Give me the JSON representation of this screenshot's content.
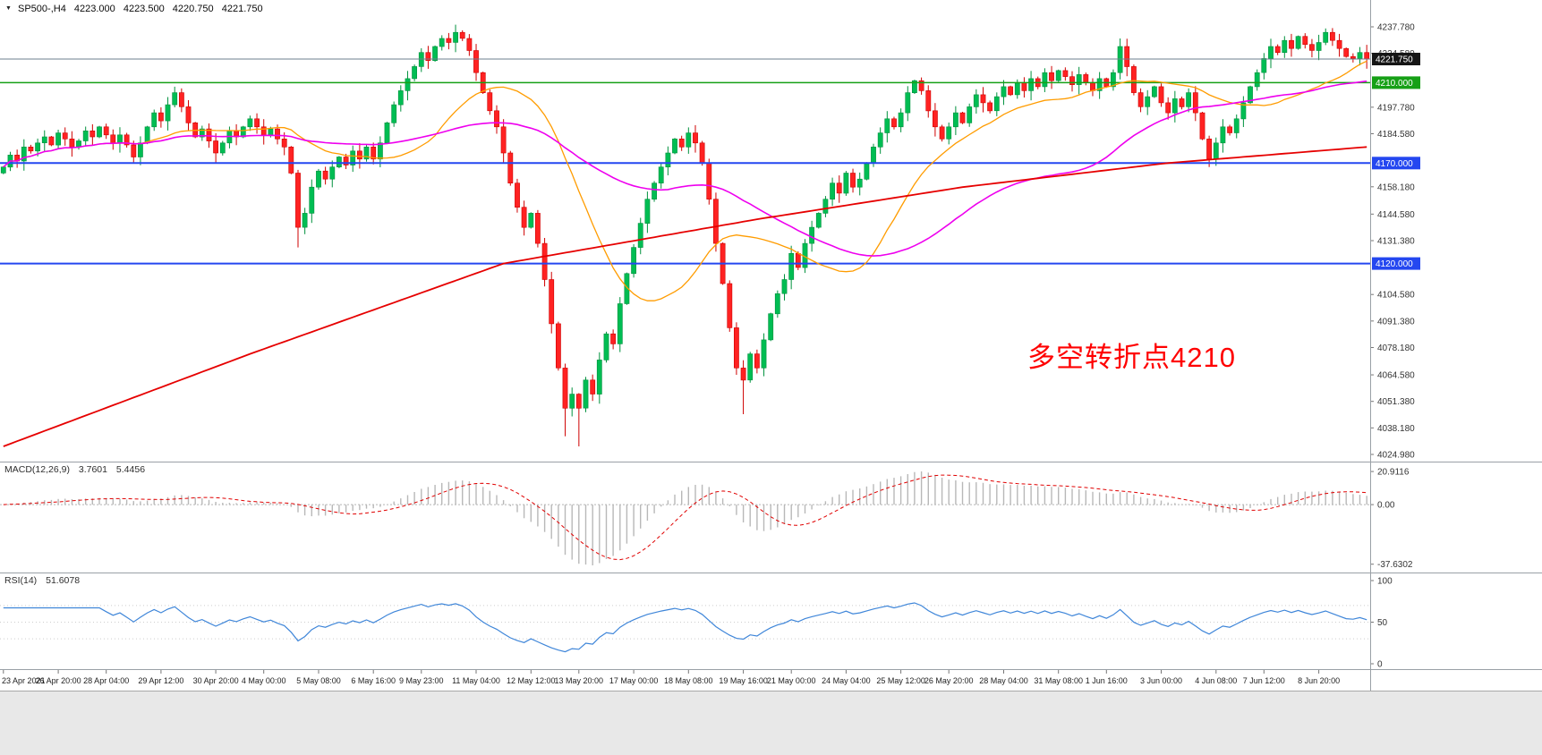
{
  "quote": {
    "marker": "▼",
    "symbol": "SP500-,H4",
    "open": "4223.000",
    "high": "4223.500",
    "low": "4220.750",
    "close": "4221.750"
  },
  "chart_data": [
    {
      "type": "candlestick",
      "title": "SP500-,H4",
      "timeframe": "H4",
      "ylim": [
        4024.98,
        4237.78
      ],
      "first_open": 4165,
      "closes": [
        4168,
        4174,
        4171,
        4178,
        4176,
        4180,
        4183,
        4179,
        4185,
        4182,
        4178,
        4181,
        4186,
        4183,
        4188,
        4184,
        4180,
        4184,
        4179,
        4173,
        4180,
        4188,
        4195,
        4191,
        4199,
        4205,
        4198,
        4190,
        4183,
        4187,
        4181,
        4175,
        4180,
        4186,
        4183,
        4188,
        4192,
        4188,
        4184,
        4187,
        4182,
        4178,
        4165,
        4138,
        4145,
        4158,
        4166,
        4162,
        4168,
        4173,
        4169,
        4176,
        4172,
        4178,
        4172,
        4180,
        4190,
        4199,
        4206,
        4212,
        4218,
        4225,
        4221,
        4228,
        4232,
        4230,
        4235,
        4232,
        4226,
        4215,
        4205,
        4196,
        4188,
        4175,
        4160,
        4148,
        4138,
        4145,
        4130,
        4112,
        4090,
        4068,
        4048,
        4055,
        4048,
        4062,
        4055,
        4072,
        4085,
        4080,
        4100,
        4115,
        4128,
        4140,
        4152,
        4160,
        4168,
        4175,
        4182,
        4178,
        4185,
        4180,
        4170,
        4152,
        4130,
        4110,
        4088,
        4068,
        4062,
        4075,
        4068,
        4082,
        4095,
        4105,
        4112,
        4125,
        4118,
        4130,
        4138,
        4145,
        4152,
        4160,
        4155,
        4165,
        4158,
        4162,
        4170,
        4178,
        4185,
        4192,
        4188,
        4195,
        4205,
        4211,
        4206,
        4196,
        4188,
        4182,
        4188,
        4195,
        4190,
        4198,
        4204,
        4200,
        4196,
        4203,
        4208,
        4204,
        4210,
        4206,
        4212,
        4208,
        4215,
        4211,
        4216,
        4213,
        4209,
        4214,
        4210,
        4206,
        4212,
        4208,
        4215,
        4228,
        4218,
        4205,
        4198,
        4203,
        4208,
        4200,
        4195,
        4202,
        4198,
        4205,
        4195,
        4182,
        4172,
        4180,
        4188,
        4185,
        4192,
        4200,
        4208,
        4215,
        4222,
        4228,
        4225,
        4231,
        4227,
        4233,
        4229,
        4226,
        4230,
        4235,
        4231,
        4227,
        4223,
        4222,
        4225,
        4221.75
      ],
      "extreme_overrides": {
        "25": {
          "high": 4208
        },
        "43": {
          "low": 4128
        },
        "66": {
          "high": 4238
        },
        "82": {
          "low": 4034
        },
        "84": {
          "low": 4029
        },
        "108": {
          "low": 4045
        },
        "163": {
          "high": 4232
        },
        "176": {
          "low": 4168
        },
        "193": {
          "high": 4237
        }
      },
      "candle_colors": {
        "up": "#00bd53",
        "up_border": "#00913d",
        "down": "#ff2222",
        "down_border": "#cf0000"
      },
      "y_tick_labels": [
        "4237.780",
        "4224.580",
        "4197.780",
        "4184.580",
        "4158.180",
        "4144.580",
        "4131.380",
        "4104.580",
        "4091.380",
        "4078.180",
        "4064.580",
        "4051.380",
        "4038.180",
        "4024.980"
      ],
      "horizontal_lines": [
        {
          "value": 4221.75,
          "label": "4221.750",
          "color": "#6e7f8d",
          "width": 1,
          "badge_bg": "#151515"
        },
        {
          "value": 4210,
          "label": "4210.000",
          "color": "#16a016",
          "width": 1.5,
          "badge_bg": "#16a016"
        },
        {
          "value": 4170,
          "label": "4170.000",
          "color": "#2447f0",
          "width": 2,
          "badge_bg": "#2447f0"
        },
        {
          "value": 4120,
          "label": "4120.000",
          "color": "#2447f0",
          "width": 2,
          "badge_bg": "#2447f0"
        }
      ],
      "moving_averages": [
        {
          "name": "ma-fast",
          "method": "sma",
          "period": 21,
          "color": "#ff9c00",
          "width": 1.3
        },
        {
          "name": "ma-mid",
          "method": "sma",
          "period": 55,
          "color": "#ee00ee",
          "width": 1.6
        },
        {
          "name": "ma-slow",
          "method": "waypoints",
          "color": "#e60000",
          "width": 1.8,
          "points": [
            [
              0,
              4029
            ],
            [
              36,
              4075
            ],
            [
              73,
              4120
            ],
            [
              110,
              4142
            ],
            [
              140,
              4158
            ],
            [
              170,
              4170
            ],
            [
              199,
              4178
            ]
          ]
        }
      ],
      "x_tick_labels": [
        "23 Apr 2021",
        "26 Apr 20:00",
        "28 Apr 04:00",
        "29 Apr 12:00",
        "30 Apr 20:00",
        "4 May 00:00",
        "5 May 08:00",
        "6 May 16:00",
        "9 May 23:00",
        "11 May 04:00",
        "12 May 12:00",
        "13 May 20:00",
        "17 May 00:00",
        "18 May 08:00",
        "19 May 16:00",
        "21 May 00:00",
        "24 May 04:00",
        "25 May 12:00",
        "26 May 20:00",
        "28 May 04:00",
        "31 May 08:00",
        "1 Jun 16:00",
        "3 Jun 00:00",
        "4 Jun 08:00",
        "7 Jun 12:00",
        "8 Jun 20:00"
      ],
      "annotation": {
        "text": "多空转折点4210",
        "color": "#ff0000"
      }
    },
    {
      "type": "macd",
      "label": "MACD(12,26,9)",
      "params": [
        12,
        26,
        9
      ],
      "values": [
        "3.7601",
        "5.4456"
      ],
      "ylim": [
        -37.6302,
        20.9116
      ],
      "y_tick_labels": [
        "20.9116",
        "0.00",
        "-37.6302"
      ],
      "histogram_color": "#b8b8b8",
      "signal_color": "#e00000"
    },
    {
      "type": "rsi",
      "label": "RSI(14)",
      "period": 14,
      "value": "51.6078",
      "ylim": [
        0,
        100
      ],
      "y_tick_labels": [
        "100",
        "50",
        "0"
      ],
      "levels": [
        30,
        50,
        70
      ],
      "line_color": "#3f86d9"
    }
  ]
}
